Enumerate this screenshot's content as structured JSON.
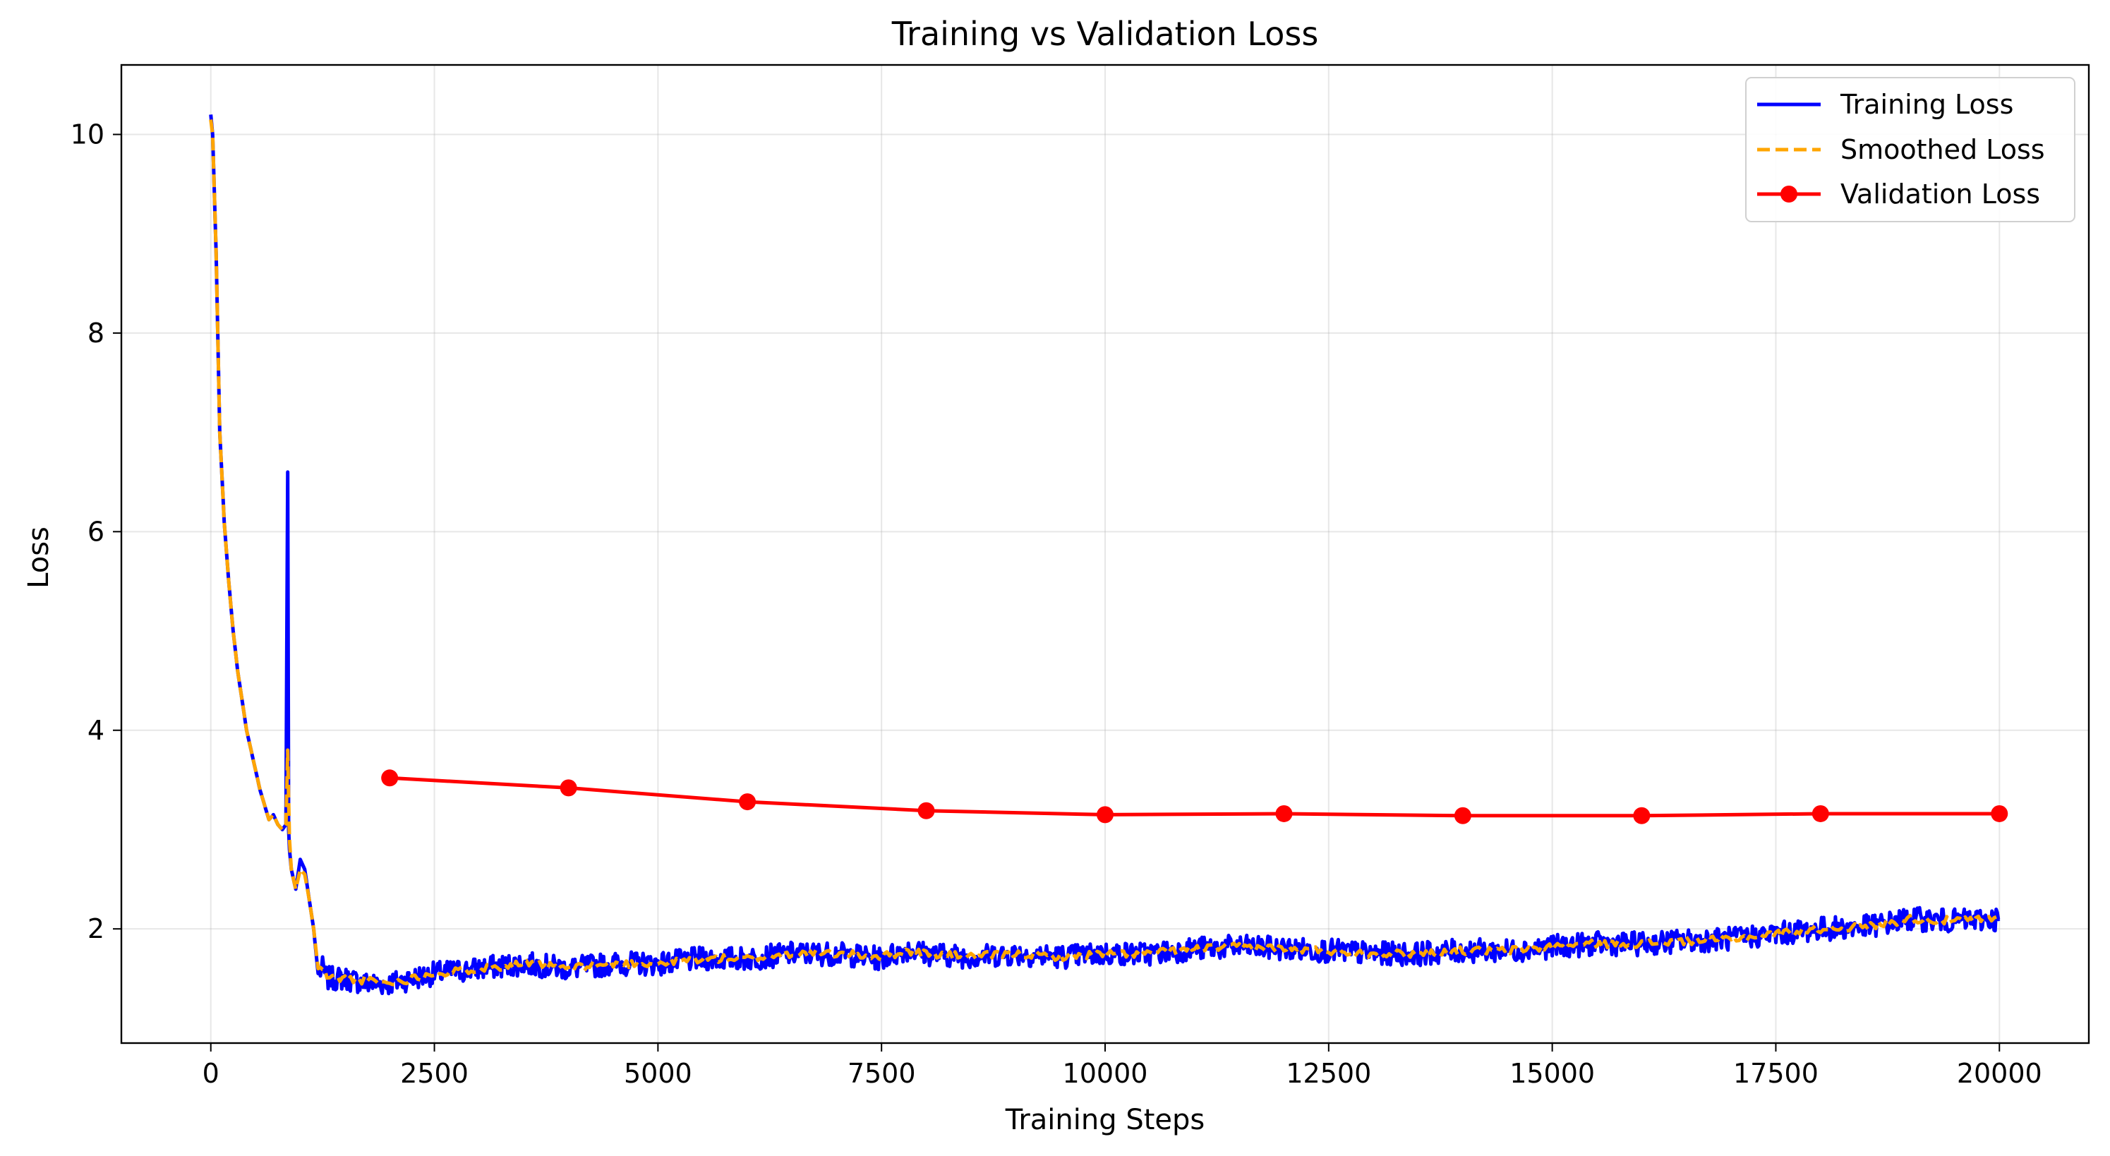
{
  "chart_data": {
    "type": "line",
    "title": "Training vs Validation Loss",
    "xlabel": "Training Steps",
    "ylabel": "Loss",
    "xlim": [
      -1000,
      21000
    ],
    "ylim": [
      0.85,
      10.7
    ],
    "xticks": [
      0,
      2500,
      5000,
      7500,
      10000,
      12500,
      15000,
      17500,
      20000
    ],
    "xtick_labels": [
      "0",
      "2500",
      "5000",
      "7500",
      "10000",
      "12500",
      "15000",
      "17500",
      "20000"
    ],
    "yticks": [
      2,
      4,
      6,
      8,
      10
    ],
    "ytick_labels": [
      "2",
      "4",
      "6",
      "8",
      "10"
    ],
    "grid": true,
    "legend_position": "top-right",
    "series": [
      {
        "name": "Training Loss",
        "color": "#0000ff",
        "style": "solid",
        "noise": 0.12,
        "x": [
          0,
          20,
          60,
          100,
          150,
          200,
          250,
          300,
          350,
          400,
          450,
          500,
          550,
          600,
          650,
          700,
          750,
          800,
          840,
          860,
          870,
          880,
          900,
          950,
          1000,
          1050,
          1100,
          1150,
          1200,
          1250,
          1300,
          1500,
          1750,
          2000,
          2250,
          2500,
          3000,
          3500,
          4000,
          4500,
          5000,
          5500,
          6000,
          6500,
          7000,
          7500,
          7800,
          8000,
          8500,
          9000,
          9500,
          10000,
          10500,
          11000,
          11500,
          12000,
          12500,
          13000,
          13500,
          14000,
          14500,
          15000,
          15500,
          16000,
          16500,
          17000,
          17500,
          18000,
          18500,
          19000,
          19500,
          20000
        ],
        "y": [
          10.2,
          10.0,
          8.8,
          7.0,
          6.1,
          5.5,
          5.0,
          4.6,
          4.3,
          4.0,
          3.8,
          3.6,
          3.4,
          3.25,
          3.1,
          3.15,
          3.05,
          3.0,
          3.05,
          6.6,
          3.0,
          2.8,
          2.6,
          2.4,
          2.7,
          2.6,
          2.3,
          2.0,
          1.55,
          1.6,
          1.5,
          1.5,
          1.45,
          1.45,
          1.5,
          1.55,
          1.6,
          1.65,
          1.6,
          1.65,
          1.65,
          1.7,
          1.7,
          1.75,
          1.75,
          1.7,
          1.8,
          1.75,
          1.72,
          1.75,
          1.72,
          1.75,
          1.75,
          1.8,
          1.82,
          1.8,
          1.78,
          1.75,
          1.75,
          1.78,
          1.78,
          1.82,
          1.85,
          1.85,
          1.88,
          1.9,
          1.95,
          2.0,
          2.02,
          2.1,
          2.08,
          2.1
        ]
      },
      {
        "name": "Smoothed Loss",
        "color": "#ffa500",
        "style": "dashed",
        "noise": 0.04,
        "x": [
          0,
          20,
          60,
          100,
          150,
          200,
          250,
          300,
          350,
          400,
          450,
          500,
          550,
          600,
          650,
          700,
          750,
          800,
          840,
          860,
          870,
          880,
          900,
          950,
          1000,
          1050,
          1100,
          1150,
          1200,
          1250,
          1300,
          1500,
          1750,
          2000,
          2250,
          2500,
          3000,
          3500,
          4000,
          4500,
          5000,
          5500,
          6000,
          6500,
          7000,
          7500,
          7800,
          8000,
          8500,
          9000,
          9500,
          10000,
          10500,
          11000,
          11500,
          12000,
          12500,
          13000,
          13500,
          14000,
          14500,
          15000,
          15500,
          16000,
          16500,
          17000,
          17500,
          18000,
          18500,
          19000,
          19500,
          20000
        ],
        "y": [
          10.15,
          10.0,
          8.8,
          7.0,
          6.1,
          5.5,
          5.0,
          4.6,
          4.3,
          4.0,
          3.8,
          3.6,
          3.4,
          3.25,
          3.1,
          3.15,
          3.05,
          3.0,
          3.05,
          3.8,
          3.3,
          2.9,
          2.6,
          2.4,
          2.6,
          2.55,
          2.3,
          2.0,
          1.6,
          1.6,
          1.52,
          1.5,
          1.48,
          1.45,
          1.5,
          1.55,
          1.6,
          1.65,
          1.6,
          1.65,
          1.65,
          1.7,
          1.7,
          1.75,
          1.75,
          1.72,
          1.78,
          1.75,
          1.72,
          1.75,
          1.72,
          1.75,
          1.75,
          1.8,
          1.82,
          1.8,
          1.78,
          1.75,
          1.75,
          1.78,
          1.78,
          1.82,
          1.85,
          1.85,
          1.88,
          1.9,
          1.95,
          2.0,
          2.02,
          2.1,
          2.08,
          2.1
        ]
      },
      {
        "name": "Validation Loss",
        "color": "#ff0000",
        "style": "solid-marker",
        "x": [
          2000,
          4000,
          6000,
          8000,
          10000,
          12000,
          14000,
          16000,
          18000,
          20000
        ],
        "y": [
          3.52,
          3.42,
          3.28,
          3.19,
          3.15,
          3.16,
          3.14,
          3.14,
          3.16,
          3.16
        ]
      }
    ]
  }
}
